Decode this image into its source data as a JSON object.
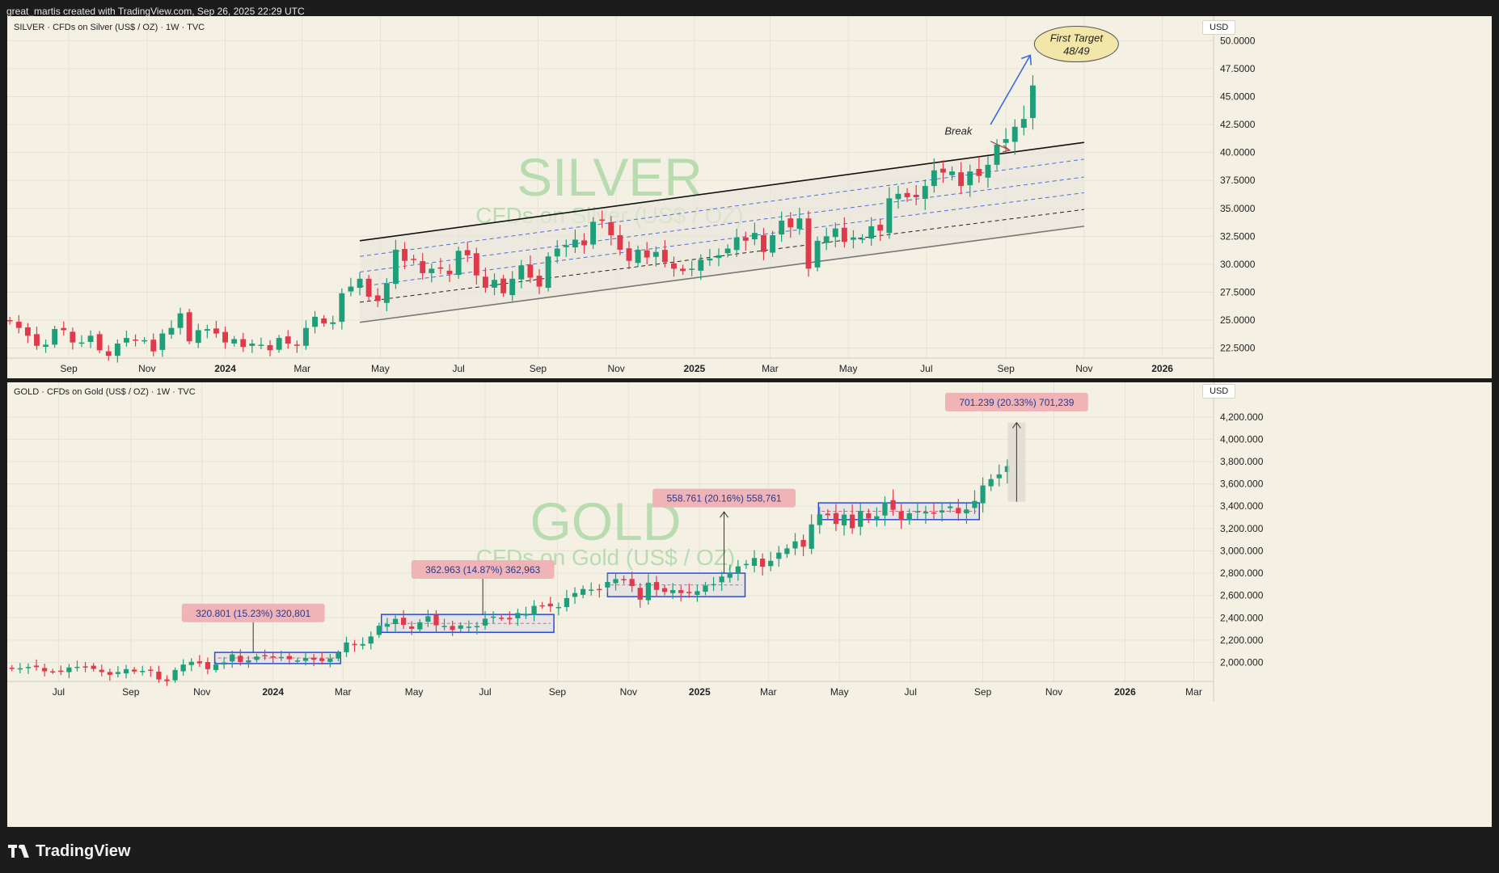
{
  "header": {
    "attribution": "great_martis created with TradingView.com, Sep 26, 2025 22:29 UTC"
  },
  "footer": {
    "brand": "TradingView"
  },
  "colors": {
    "background": "#f4f1e4",
    "up_candle": "#1f9e7a",
    "down_candle": "#e0394b",
    "grid": "#e6e2d3",
    "box_outline": "#2a4bd7",
    "label_bg": "#f0b3b6",
    "watermark": "#b9dbb0"
  },
  "silver_panel": {
    "title": "SILVER · CFDs on Silver (US$ / OZ) · 1W · TVC",
    "currency": "USD",
    "watermark_main": "SILVER",
    "watermark_sub": "CFDs on Silver (US$ / OZ)",
    "annotations": {
      "target_line1": "First Target",
      "target_line2": "48/49",
      "break": "Break"
    }
  },
  "gold_panel": {
    "title": "GOLD · CFDs on Gold (US$ / OZ) · 1W · TVC",
    "currency": "USD",
    "watermark_main": "GOLD",
    "watermark_sub": "CFDs on Gold (US$ / OZ)"
  },
  "chart_data": [
    {
      "type": "candlestick",
      "title": "SILVER · CFDs on Silver (US$ / OZ) · 1W · TVC",
      "y_unit": "USD",
      "y_ticks": [
        22.5,
        25,
        27.5,
        30,
        32.5,
        35,
        37.5,
        40,
        42.5,
        45,
        47.5,
        50
      ],
      "y_tick_labels": [
        "22.5000",
        "25.0000",
        "27.5000",
        "30.0000",
        "32.5000",
        "35.0000",
        "37.5000",
        "40.0000",
        "42.5000",
        "45.0000",
        "47.5000",
        "50.0000"
      ],
      "ylim": [
        21.6,
        52.2
      ],
      "x_ticks": [
        "2023-09-01",
        "2023-11-01",
        "2024-01-01",
        "2024-03-01",
        "2024-05-01",
        "2024-07-01",
        "2024-09-01",
        "2024-11-01",
        "2025-01-01",
        "2025-03-01",
        "2025-05-01",
        "2025-07-01",
        "2025-09-01",
        "2025-11-01",
        "2026-01-01"
      ],
      "x_tick_labels": [
        "Sep",
        "Nov",
        "2024",
        "Mar",
        "May",
        "Jul",
        "Sep",
        "Nov",
        "2025",
        "Mar",
        "May",
        "Jul",
        "Sep",
        "Nov",
        "2026"
      ],
      "bold_ticks": [
        "2024",
        "2025",
        "2026"
      ],
      "xlim": [
        "2023-07-15",
        "2026-02-10"
      ],
      "series_close": [
        [
          "2023-07-17",
          24.9
        ],
        [
          "2023-07-24",
          24.3
        ],
        [
          "2023-07-31",
          23.6
        ],
        [
          "2023-08-07",
          22.7
        ],
        [
          "2023-08-14",
          22.8
        ],
        [
          "2023-08-21",
          24.2
        ],
        [
          "2023-08-28",
          24.1
        ],
        [
          "2023-09-04",
          23.0
        ],
        [
          "2023-09-11",
          23.0
        ],
        [
          "2023-09-18",
          23.6
        ],
        [
          "2023-09-25",
          22.3
        ],
        [
          "2023-10-02",
          21.8
        ],
        [
          "2023-10-09",
          22.9
        ],
        [
          "2023-10-16",
          23.4
        ],
        [
          "2023-10-23",
          23.2
        ],
        [
          "2023-10-30",
          23.2
        ],
        [
          "2023-11-06",
          22.2
        ],
        [
          "2023-11-13",
          23.8
        ],
        [
          "2023-11-20",
          24.3
        ],
        [
          "2023-11-27",
          25.6
        ],
        [
          "2023-12-04",
          23.1
        ],
        [
          "2023-12-11",
          24.1
        ],
        [
          "2023-12-18",
          24.2
        ],
        [
          "2023-12-25",
          23.8
        ],
        [
          "2024-01-01",
          23.0
        ],
        [
          "2024-01-08",
          23.3
        ],
        [
          "2024-01-15",
          22.6
        ],
        [
          "2024-01-22",
          22.9
        ],
        [
          "2024-01-29",
          22.8
        ],
        [
          "2024-02-05",
          22.3
        ],
        [
          "2024-02-12",
          23.4
        ],
        [
          "2024-02-19",
          22.9
        ],
        [
          "2024-02-26",
          22.7
        ],
        [
          "2024-03-04",
          24.3
        ],
        [
          "2024-03-11",
          25.3
        ],
        [
          "2024-03-18",
          24.7
        ],
        [
          "2024-03-25",
          24.8
        ],
        [
          "2024-04-01",
          27.4
        ],
        [
          "2024-04-08",
          28.0
        ],
        [
          "2024-04-15",
          28.7
        ],
        [
          "2024-04-22",
          27.1
        ],
        [
          "2024-04-29",
          26.7
        ],
        [
          "2024-05-06",
          28.3
        ],
        [
          "2024-05-13",
          31.3
        ],
        [
          "2024-05-20",
          30.3
        ],
        [
          "2024-05-27",
          30.4
        ],
        [
          "2024-06-03",
          29.2
        ],
        [
          "2024-06-10",
          29.6
        ],
        [
          "2024-06-17",
          29.6
        ],
        [
          "2024-06-24",
          29.1
        ],
        [
          "2024-07-01",
          31.2
        ],
        [
          "2024-07-08",
          30.8
        ],
        [
          "2024-07-15",
          29.0
        ],
        [
          "2024-07-22",
          27.9
        ],
        [
          "2024-07-29",
          28.6
        ],
        [
          "2024-08-05",
          27.4
        ],
        [
          "2024-08-12",
          28.7
        ],
        [
          "2024-08-19",
          29.9
        ],
        [
          "2024-08-26",
          28.8
        ],
        [
          "2024-09-02",
          28.0
        ],
        [
          "2024-09-09",
          30.7
        ],
        [
          "2024-09-16",
          31.4
        ],
        [
          "2024-09-23",
          31.7
        ],
        [
          "2024-09-30",
          32.2
        ],
        [
          "2024-10-07",
          31.7
        ],
        [
          "2024-10-14",
          33.8
        ],
        [
          "2024-10-21",
          33.9
        ],
        [
          "2024-10-28",
          32.6
        ],
        [
          "2024-11-04",
          31.3
        ],
        [
          "2024-11-11",
          30.3
        ],
        [
          "2024-11-18",
          31.3
        ],
        [
          "2024-11-25",
          30.6
        ],
        [
          "2024-12-02",
          31.1
        ],
        [
          "2024-12-09",
          30.2
        ],
        [
          "2024-12-16",
          29.6
        ],
        [
          "2024-12-23",
          29.4
        ],
        [
          "2024-12-30",
          29.6
        ],
        [
          "2025-01-06",
          30.4
        ],
        [
          "2025-01-13",
          30.5
        ],
        [
          "2025-01-20",
          30.8
        ],
        [
          "2025-01-27",
          31.4
        ],
        [
          "2025-02-03",
          32.4
        ],
        [
          "2025-02-10",
          32.1
        ],
        [
          "2025-02-17",
          32.8
        ],
        [
          "2025-02-24",
          31.1
        ],
        [
          "2025-03-03",
          32.6
        ],
        [
          "2025-03-10",
          33.9
        ],
        [
          "2025-03-17",
          33.3
        ],
        [
          "2025-03-24",
          34.1
        ],
        [
          "2025-03-31",
          29.6
        ],
        [
          "2025-04-07",
          32.1
        ],
        [
          "2025-04-14",
          32.5
        ],
        [
          "2025-04-21",
          33.2
        ],
        [
          "2025-04-28",
          32.0
        ],
        [
          "2025-05-05",
          32.4
        ],
        [
          "2025-05-12",
          32.3
        ],
        [
          "2025-05-19",
          33.4
        ],
        [
          "2025-05-26",
          33.0
        ],
        [
          "2025-06-02",
          35.9
        ],
        [
          "2025-06-09",
          36.3
        ],
        [
          "2025-06-16",
          36.0
        ],
        [
          "2025-06-23",
          36.0
        ],
        [
          "2025-06-30",
          37.0
        ],
        [
          "2025-07-07",
          38.4
        ],
        [
          "2025-07-14",
          38.2
        ],
        [
          "2025-07-21",
          38.3
        ],
        [
          "2025-07-28",
          37.0
        ],
        [
          "2025-08-04",
          38.3
        ],
        [
          "2025-08-11",
          37.9
        ],
        [
          "2025-08-18",
          38.9
        ],
        [
          "2025-08-25",
          40.7
        ],
        [
          "2025-09-01",
          41.2
        ],
        [
          "2025-09-08",
          42.3
        ],
        [
          "2025-09-15",
          43.0
        ],
        [
          "2025-09-22",
          46.0
        ]
      ],
      "annotations": [
        {
          "text": "Break",
          "date": "2025-07-15",
          "value": 42.0
        },
        {
          "text": "First Target 48/49",
          "date": "2025-10-10",
          "value": 49.8
        }
      ]
    },
    {
      "type": "candlestick",
      "title": "GOLD · CFDs on Gold (US$ / OZ) · 1W · TVC",
      "y_unit": "USD",
      "y_ticks": [
        2000,
        2200,
        2400,
        2600,
        2800,
        3000,
        3200,
        3400,
        3600,
        3800,
        4000,
        4200
      ],
      "y_tick_labels": [
        "2,000.000",
        "2,200.000",
        "2,400.000",
        "2,600.000",
        "2,800.000",
        "3,000.000",
        "3,200.000",
        "3,400.000",
        "3,600.000",
        "3,800.000",
        "4,000.000",
        "4,200.000"
      ],
      "ylim": [
        1830,
        4510
      ],
      "x_ticks": [
        "2023-07-01",
        "2023-09-01",
        "2023-11-01",
        "2024-01-01",
        "2024-03-01",
        "2024-05-01",
        "2024-07-01",
        "2024-09-01",
        "2024-11-01",
        "2025-01-01",
        "2025-03-01",
        "2025-05-01",
        "2025-07-01",
        "2025-09-01",
        "2025-11-01",
        "2026-01-01",
        "2026-03-01"
      ],
      "x_tick_labels": [
        "Jul",
        "Sep",
        "Nov",
        "2024",
        "Mar",
        "May",
        "Jul",
        "Sep",
        "Nov",
        "2025",
        "Mar",
        "May",
        "Jul",
        "Sep",
        "Nov",
        "2026",
        "Mar"
      ],
      "bold_ticks": [
        "2024",
        "2025",
        "2026"
      ],
      "xlim": [
        "2023-05-18",
        "2026-03-18"
      ],
      "series_close": [
        [
          "2023-05-22",
          1945
        ],
        [
          "2023-05-29",
          1948
        ],
        [
          "2023-06-05",
          1960
        ],
        [
          "2023-06-12",
          1958
        ],
        [
          "2023-06-19",
          1921
        ],
        [
          "2023-06-26",
          1919
        ],
        [
          "2023-07-03",
          1925
        ],
        [
          "2023-07-10",
          1955
        ],
        [
          "2023-07-17",
          1961
        ],
        [
          "2023-07-24",
          1959
        ],
        [
          "2023-07-31",
          1942
        ],
        [
          "2023-08-07",
          1914
        ],
        [
          "2023-08-14",
          1889
        ],
        [
          "2023-08-21",
          1914
        ],
        [
          "2023-08-28",
          1940
        ],
        [
          "2023-09-04",
          1919
        ],
        [
          "2023-09-11",
          1924
        ],
        [
          "2023-09-18",
          1925
        ],
        [
          "2023-09-25",
          1848
        ],
        [
          "2023-10-02",
          1833
        ],
        [
          "2023-10-09",
          1932
        ],
        [
          "2023-10-16",
          1981
        ],
        [
          "2023-10-23",
          2006
        ],
        [
          "2023-10-30",
          1992
        ],
        [
          "2023-11-06",
          1940
        ],
        [
          "2023-11-13",
          1981
        ],
        [
          "2023-11-20",
          2001
        ],
        [
          "2023-11-27",
          2072
        ],
        [
          "2023-12-04",
          2004
        ],
        [
          "2023-12-11",
          2019
        ],
        [
          "2023-12-18",
          2053
        ],
        [
          "2023-12-25",
          2063
        ],
        [
          "2024-01-01",
          2045
        ],
        [
          "2024-01-08",
          2049
        ],
        [
          "2024-01-15",
          2029
        ],
        [
          "2024-01-22",
          2018
        ],
        [
          "2024-01-29",
          2039
        ],
        [
          "2024-02-05",
          2024
        ],
        [
          "2024-02-12",
          2013
        ],
        [
          "2024-02-19",
          2035
        ],
        [
          "2024-02-26",
          2083
        ],
        [
          "2024-03-04",
          2179
        ],
        [
          "2024-03-11",
          2155
        ],
        [
          "2024-03-18",
          2165
        ],
        [
          "2024-03-25",
          2233
        ],
        [
          "2024-04-01",
          2329
        ],
        [
          "2024-04-08",
          2344
        ],
        [
          "2024-04-15",
          2391
        ],
        [
          "2024-04-22",
          2337
        ],
        [
          "2024-04-29",
          2301
        ],
        [
          "2024-05-06",
          2360
        ],
        [
          "2024-05-13",
          2414
        ],
        [
          "2024-05-20",
          2333
        ],
        [
          "2024-05-27",
          2327
        ],
        [
          "2024-06-03",
          2293
        ],
        [
          "2024-06-10",
          2332
        ],
        [
          "2024-06-17",
          2321
        ],
        [
          "2024-06-24",
          2326
        ],
        [
          "2024-07-01",
          2392
        ],
        [
          "2024-07-08",
          2411
        ],
        [
          "2024-07-15",
          2400
        ],
        [
          "2024-07-22",
          2386
        ],
        [
          "2024-07-29",
          2443
        ],
        [
          "2024-08-05",
          2431
        ],
        [
          "2024-08-12",
          2507
        ],
        [
          "2024-08-19",
          2512
        ],
        [
          "2024-08-26",
          2503
        ],
        [
          "2024-09-02",
          2497
        ],
        [
          "2024-09-09",
          2577
        ],
        [
          "2024-09-16",
          2622
        ],
        [
          "2024-09-23",
          2658
        ],
        [
          "2024-09-30",
          2653
        ],
        [
          "2024-10-07",
          2656
        ],
        [
          "2024-10-14",
          2721
        ],
        [
          "2024-10-21",
          2747
        ],
        [
          "2024-10-28",
          2737
        ],
        [
          "2024-11-04",
          2685
        ],
        [
          "2024-11-11",
          2563
        ],
        [
          "2024-11-18",
          2715
        ],
        [
          "2024-11-25",
          2650
        ],
        [
          "2024-12-02",
          2632
        ],
        [
          "2024-12-09",
          2648
        ],
        [
          "2024-12-16",
          2622
        ],
        [
          "2024-12-23",
          2621
        ],
        [
          "2024-12-30",
          2639
        ],
        [
          "2025-01-06",
          2690
        ],
        [
          "2025-01-13",
          2702
        ],
        [
          "2025-01-20",
          2770
        ],
        [
          "2025-01-27",
          2800
        ],
        [
          "2025-02-03",
          2861
        ],
        [
          "2025-02-10",
          2883
        ],
        [
          "2025-02-17",
          2936
        ],
        [
          "2025-02-24",
          2858
        ],
        [
          "2025-03-03",
          2911
        ],
        [
          "2025-03-10",
          2984
        ],
        [
          "2025-03-17",
          3022
        ],
        [
          "2025-03-24",
          3085
        ],
        [
          "2025-03-31",
          3037
        ],
        [
          "2025-04-07",
          3237
        ],
        [
          "2025-04-14",
          3327
        ],
        [
          "2025-04-21",
          3319
        ],
        [
          "2025-04-28",
          3241
        ],
        [
          "2025-05-05",
          3325
        ],
        [
          "2025-05-12",
          3203
        ],
        [
          "2025-05-19",
          3357
        ],
        [
          "2025-05-26",
          3289
        ],
        [
          "2025-06-02",
          3310
        ],
        [
          "2025-06-09",
          3433
        ],
        [
          "2025-06-16",
          3368
        ],
        [
          "2025-06-23",
          3274
        ],
        [
          "2025-06-30",
          3337
        ],
        [
          "2025-07-07",
          3355
        ],
        [
          "2025-07-14",
          3350
        ],
        [
          "2025-07-21",
          3337
        ],
        [
          "2025-07-28",
          3363
        ],
        [
          "2025-08-04",
          3398
        ],
        [
          "2025-08-11",
          3336
        ],
        [
          "2025-08-18",
          3371
        ],
        [
          "2025-08-25",
          3447
        ],
        [
          "2025-09-01",
          3586
        ],
        [
          "2025-09-08",
          3643
        ],
        [
          "2025-09-15",
          3685
        ],
        [
          "2025-09-22",
          3759
        ]
      ],
      "annotations": [
        {
          "text": "320.801 (15.23%) 320,801",
          "date": "2023-12-15",
          "value": 2440
        },
        {
          "text": "362.963 (14.87%) 362,963",
          "date": "2024-06-29",
          "value": 2830
        },
        {
          "text": "558.761 (20.16%) 558,761",
          "date": "2025-01-22",
          "value": 3470
        },
        {
          "text": "701.239 (20.33%) 701,239",
          "date": "2025-09-30",
          "value": 4330
        }
      ]
    }
  ]
}
